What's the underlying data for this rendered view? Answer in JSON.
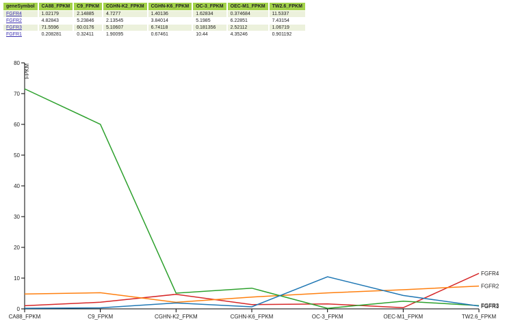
{
  "table": {
    "headers": [
      "geneSymbol",
      "CA88_FPKM",
      "C9_FPKM",
      "CGHN-K2_FPKM",
      "CGHN-K6_FPKM",
      "OC-3_FPKM",
      "OEC-M1_FPKM",
      "TW2.6_FPKM"
    ],
    "rows": [
      [
        "FGFR4",
        "1.02179",
        "2.14885",
        "4.7277",
        "1.40136",
        "1.62834",
        "0.374684",
        "11.5337"
      ],
      [
        "FGFR2",
        "4.82843",
        "5.23846",
        "2.13545",
        "3.84014",
        "5.1985",
        "6.22851",
        "7.43154"
      ],
      [
        "FGFR3",
        "71.5596",
        "60.0176",
        "5.10607",
        "6.74118",
        "0.181356",
        "2.52112",
        "1.06719"
      ],
      [
        "FGFR1",
        "0.208281",
        "0.32411",
        "1.90095",
        "0.67461",
        "10.44",
        "4.35246",
        "0.901192"
      ]
    ]
  },
  "chart_data": {
    "type": "line",
    "categories": [
      "CA88_FPKM",
      "C9_FPKM",
      "CGHN-K2_FPKM",
      "CGHN-K6_FPKM",
      "OC-3_FPKM",
      "OEC-M1_FPKM",
      "TW2.6_FPKM"
    ],
    "ylabel": "FPKM",
    "ylim": [
      0,
      80
    ],
    "yticks": [
      "0",
      "10",
      "20",
      "30",
      "40",
      "50",
      "60",
      "70",
      "80"
    ],
    "grid": false,
    "series": [
      {
        "name": "FGFR4",
        "color": "#d62728",
        "values": [
          1.02179,
          2.14885,
          4.7277,
          1.40136,
          1.62834,
          0.374684,
          11.5337
        ]
      },
      {
        "name": "FGFR2",
        "color": "#ff7f0e",
        "values": [
          4.82843,
          5.23846,
          2.13545,
          3.84014,
          5.1985,
          6.22851,
          7.43154
        ]
      },
      {
        "name": "FGFR3",
        "color": "#2ca02c",
        "values": [
          71.5596,
          60.0176,
          5.10607,
          6.74118,
          0.181356,
          2.52112,
          1.06719
        ]
      },
      {
        "name": "FGFR1",
        "color": "#1f77b4",
        "values": [
          0.208281,
          0.32411,
          1.90095,
          0.67461,
          10.44,
          4.35246,
          0.901192
        ]
      }
    ]
  }
}
